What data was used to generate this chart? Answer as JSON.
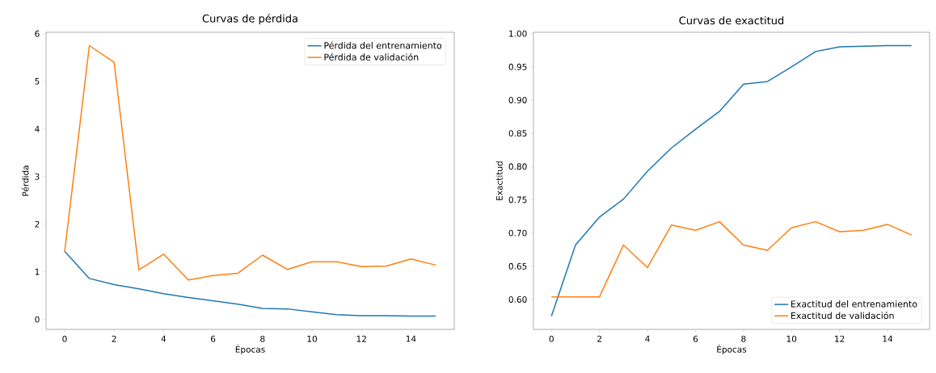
{
  "chart_data": [
    {
      "type": "line",
      "title": "Curvas de pérdida",
      "xlabel": "Épocas",
      "ylabel": "Pérdida",
      "x": [
        0,
        1,
        2,
        3,
        4,
        5,
        6,
        7,
        8,
        9,
        10,
        11,
        12,
        13,
        14,
        15
      ],
      "series": [
        {
          "name": "Pérdida del entrenamiento",
          "color": "#1f77b4",
          "values": [
            1.43,
            0.86,
            0.73,
            0.64,
            0.54,
            0.46,
            0.39,
            0.32,
            0.23,
            0.22,
            0.16,
            0.1,
            0.08,
            0.08,
            0.07,
            0.07
          ]
        },
        {
          "name": "Pérdida de validación",
          "color": "#ff7f0e",
          "values": [
            1.42,
            5.75,
            5.4,
            1.04,
            1.37,
            0.83,
            0.92,
            0.97,
            1.35,
            1.05,
            1.21,
            1.21,
            1.11,
            1.12,
            1.27,
            1.14
          ]
        }
      ],
      "xlim": [
        -0.75,
        15.75
      ],
      "ylim": [
        -0.21,
        6.03
      ],
      "xticks": [
        0,
        2,
        4,
        6,
        8,
        10,
        12,
        14
      ],
      "yticks": [
        0,
        1,
        2,
        3,
        4,
        5,
        6
      ],
      "legend": "top right"
    },
    {
      "type": "line",
      "title": "Curvas de exactitud",
      "xlabel": "Épocas",
      "ylabel": "Exactitud",
      "x": [
        0,
        1,
        2,
        3,
        4,
        5,
        6,
        7,
        8,
        9,
        10,
        11,
        12,
        13,
        14,
        15
      ],
      "series": [
        {
          "name": "Exactitud del entrenamiento",
          "color": "#1f77b4",
          "values": [
            0.575,
            0.682,
            0.724,
            0.751,
            0.793,
            0.828,
            0.856,
            0.883,
            0.924,
            0.928,
            0.95,
            0.973,
            0.98,
            0.981,
            0.982,
            0.982
          ]
        },
        {
          "name": "Exactitud de validación",
          "color": "#ff7f0e",
          "values": [
            0.604,
            0.604,
            0.604,
            0.682,
            0.648,
            0.712,
            0.704,
            0.717,
            0.682,
            0.674,
            0.708,
            0.717,
            0.702,
            0.704,
            0.713,
            0.697
          ]
        }
      ],
      "xlim": [
        -0.75,
        15.75
      ],
      "ylim": [
        0.555,
        1.002
      ],
      "xticks": [
        0,
        2,
        4,
        6,
        8,
        10,
        12,
        14
      ],
      "yticks": [
        {
          "value": 0.6,
          "label": "0.60"
        },
        {
          "value": 0.65,
          "label": "0.65"
        },
        {
          "value": 0.7,
          "label": "0.70"
        },
        {
          "value": 0.75,
          "label": "0.75"
        },
        {
          "value": 0.8,
          "label": "0.80"
        },
        {
          "value": 0.85,
          "label": "0.85"
        },
        {
          "value": 0.9,
          "label": "0.90"
        },
        {
          "value": 0.95,
          "label": "0.95"
        },
        {
          "value": 1.0,
          "label": "1.00"
        }
      ],
      "legend": "bottom right"
    }
  ]
}
